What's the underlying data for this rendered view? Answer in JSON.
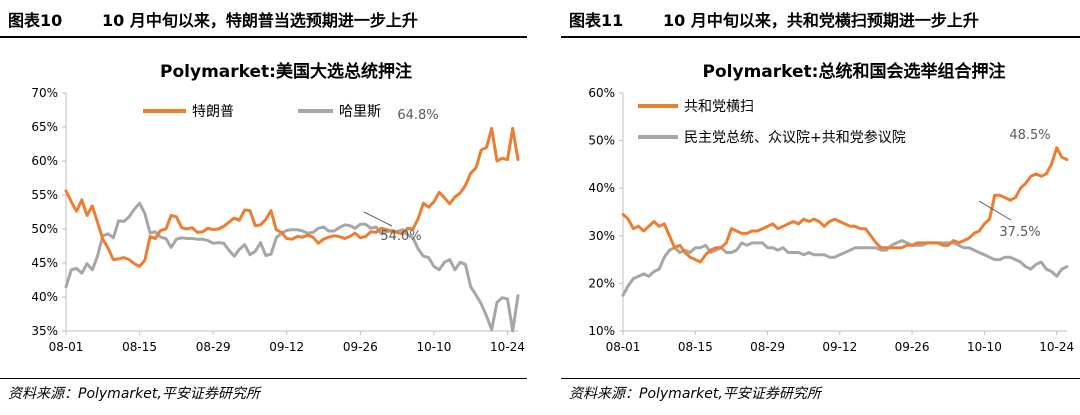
{
  "figures": [
    {
      "label": "图表10",
      "title": "10 月中旬以来，特朗普当选预期进一步上升",
      "source": "资料来源：Polymarket,平安证券研究所"
    },
    {
      "label": "图表11",
      "title": "10 月中旬以来，共和党横扫预期进一步上升",
      "source": "资料来源：Polymarket,平安证券研究所"
    }
  ],
  "chart_data": [
    {
      "type": "line",
      "title": "Polymarket:美国大选总统押注",
      "x_dates": [
        "08-01",
        "08-02",
        "08-03",
        "08-04",
        "08-05",
        "08-06",
        "08-07",
        "08-08",
        "08-09",
        "08-10",
        "08-11",
        "08-12",
        "08-13",
        "08-14",
        "08-15",
        "08-16",
        "08-17",
        "08-18",
        "08-19",
        "08-20",
        "08-21",
        "08-22",
        "08-23",
        "08-24",
        "08-25",
        "08-26",
        "08-27",
        "08-28",
        "08-29",
        "08-30",
        "08-31",
        "09-01",
        "09-02",
        "09-03",
        "09-04",
        "09-05",
        "09-06",
        "09-07",
        "09-08",
        "09-09",
        "09-10",
        "09-11",
        "09-12",
        "09-13",
        "09-14",
        "09-15",
        "09-16",
        "09-17",
        "09-18",
        "09-19",
        "09-20",
        "09-21",
        "09-22",
        "09-23",
        "09-24",
        "09-25",
        "09-26",
        "09-27",
        "09-28",
        "09-29",
        "09-30",
        "10-01",
        "10-02",
        "10-03",
        "10-04",
        "10-05",
        "10-06",
        "10-07",
        "10-08",
        "10-09",
        "10-10",
        "10-11",
        "10-12",
        "10-13",
        "10-14",
        "10-15",
        "10-16",
        "10-17",
        "10-18",
        "10-19",
        "10-20",
        "10-21",
        "10-22",
        "10-23",
        "10-24",
        "10-25",
        "10-26"
      ],
      "x_ticks": [
        "08-01",
        "08-15",
        "08-29",
        "09-12",
        "09-26",
        "10-10",
        "10-24"
      ],
      "ylim": [
        35,
        70
      ],
      "y_ticks": [
        "35%",
        "40%",
        "45%",
        "50%",
        "55%",
        "60%",
        "65%",
        "70%"
      ],
      "legend_position": "top",
      "series": [
        {
          "name": "特朗普",
          "color": "#ED7D31",
          "values": [
            55.6,
            54.0,
            52.6,
            54.3,
            52.0,
            53.4,
            51.0,
            48.5,
            47.2,
            45.5,
            45.6,
            45.8,
            45.5,
            44.9,
            44.5,
            45.4,
            48.9,
            48.6,
            49.8,
            50.0,
            52.0,
            51.8,
            50.2,
            50.0,
            50.2,
            49.5,
            49.6,
            50.1,
            49.9,
            50.0,
            50.4,
            51.0,
            51.6,
            51.3,
            52.8,
            52.7,
            50.5,
            50.6,
            51.4,
            52.7,
            49.9,
            49.5,
            48.6,
            48.5,
            48.9,
            48.8,
            49.1,
            48.8,
            47.9,
            48.5,
            48.8,
            49.0,
            48.9,
            48.6,
            48.9,
            49.4,
            48.7,
            48.9,
            49.6,
            49.5,
            50.1,
            49.9,
            49.6,
            49.5,
            49.3,
            50.1,
            50.0,
            51.5,
            53.8,
            53.2,
            54.0,
            55.4,
            54.6,
            53.7,
            54.7,
            55.3,
            56.4,
            58.2,
            59.0,
            61.6,
            62.0,
            64.8,
            60.0,
            60.4,
            60.2,
            64.8,
            60.2
          ]
        },
        {
          "name": "哈里斯",
          "color": "#A6A6A6",
          "values": [
            41.5,
            44.0,
            44.2,
            43.5,
            44.9,
            44.0,
            46.0,
            49.0,
            49.3,
            48.7,
            51.2,
            51.1,
            51.8,
            52.9,
            53.8,
            52.3,
            49.4,
            49.6,
            48.8,
            48.6,
            47.3,
            48.5,
            48.7,
            48.6,
            48.6,
            48.5,
            48.5,
            48.3,
            47.9,
            48.0,
            47.9,
            46.9,
            46.0,
            47.0,
            47.7,
            46.2,
            46.7,
            48.0,
            46.1,
            46.3,
            48.7,
            49.4,
            49.8,
            49.9,
            49.9,
            49.7,
            49.4,
            49.5,
            50.1,
            50.3,
            49.7,
            49.7,
            50.2,
            50.6,
            50.5,
            50.1,
            50.7,
            50.7,
            50.1,
            50.3,
            49.3,
            49.6,
            49.8,
            49.6,
            49.9,
            49.1,
            48.7,
            47.1,
            46.0,
            45.8,
            44.5,
            44.0,
            45.1,
            45.5,
            44.0,
            45.1,
            44.8,
            41.5,
            40.3,
            39.0,
            37.2,
            35.2,
            39.2,
            39.9,
            39.7,
            35.0,
            40.2
          ]
        }
      ],
      "annotations": [
        {
          "text": "64.8%",
          "series": 0,
          "index": 81
        },
        {
          "text": "54.0%",
          "series": 0,
          "index": 70
        }
      ]
    },
    {
      "type": "line",
      "title": "Polymarket:总统和国会选举组合押注",
      "x_dates": [
        "08-01",
        "08-02",
        "08-03",
        "08-04",
        "08-05",
        "08-06",
        "08-07",
        "08-08",
        "08-09",
        "08-10",
        "08-11",
        "08-12",
        "08-13",
        "08-14",
        "08-15",
        "08-16",
        "08-17",
        "08-18",
        "08-19",
        "08-20",
        "08-21",
        "08-22",
        "08-23",
        "08-24",
        "08-25",
        "08-26",
        "08-27",
        "08-28",
        "08-29",
        "08-30",
        "08-31",
        "09-01",
        "09-02",
        "09-03",
        "09-04",
        "09-05",
        "09-06",
        "09-07",
        "09-08",
        "09-09",
        "09-10",
        "09-11",
        "09-12",
        "09-13",
        "09-14",
        "09-15",
        "09-16",
        "09-17",
        "09-18",
        "09-19",
        "09-20",
        "09-21",
        "09-22",
        "09-23",
        "09-24",
        "09-25",
        "09-26",
        "09-27",
        "09-28",
        "09-29",
        "09-30",
        "10-01",
        "10-02",
        "10-03",
        "10-04",
        "10-05",
        "10-06",
        "10-07",
        "10-08",
        "10-09",
        "10-10",
        "10-11",
        "10-12",
        "10-13",
        "10-14",
        "10-15",
        "10-16",
        "10-17",
        "10-18",
        "10-19",
        "10-20",
        "10-21",
        "10-22",
        "10-23",
        "10-24",
        "10-25",
        "10-26"
      ],
      "x_ticks": [
        "08-01",
        "08-15",
        "08-29",
        "09-12",
        "09-26",
        "10-10",
        "10-24"
      ],
      "ylim": [
        10,
        60
      ],
      "y_ticks": [
        "10%",
        "20%",
        "30%",
        "40%",
        "50%",
        "60%"
      ],
      "legend_position": "top-left",
      "series": [
        {
          "name": "共和党横扫",
          "color": "#ED7D31",
          "values": [
            34.5,
            33.5,
            31.5,
            32.0,
            31.0,
            32.0,
            33.0,
            32.0,
            32.5,
            30.0,
            27.5,
            28.0,
            26.5,
            25.5,
            25.0,
            24.5,
            26.0,
            27.0,
            27.5,
            27.5,
            28.5,
            31.5,
            31.0,
            30.5,
            30.5,
            31.0,
            31.0,
            31.5,
            32.0,
            32.5,
            31.5,
            32.0,
            32.5,
            33.0,
            32.5,
            33.5,
            33.0,
            33.5,
            33.0,
            32.0,
            33.0,
            33.5,
            33.0,
            32.5,
            32.0,
            32.0,
            31.5,
            31.5,
            30.0,
            28.5,
            27.5,
            27.5,
            27.5,
            27.5,
            27.5,
            28.0,
            28.0,
            28.5,
            28.5,
            28.5,
            28.5,
            28.5,
            28.0,
            28.0,
            29.0,
            28.5,
            29.0,
            29.5,
            30.5,
            31.0,
            32.5,
            33.5,
            38.5,
            38.5,
            38.0,
            37.5,
            38.0,
            40.0,
            41.0,
            42.5,
            43.0,
            42.5,
            43.0,
            45.0,
            48.5,
            46.5,
            46.0
          ]
        },
        {
          "name": "民主党总统、众议院+共和党参议院",
          "color": "#A6A6A6",
          "values": [
            17.5,
            19.5,
            21.0,
            21.5,
            22.0,
            21.5,
            22.5,
            23.0,
            25.5,
            27.0,
            27.5,
            26.5,
            27.0,
            26.5,
            27.5,
            27.5,
            28.0,
            26.5,
            27.0,
            27.5,
            26.5,
            26.5,
            27.0,
            28.5,
            28.0,
            28.5,
            28.5,
            28.5,
            27.5,
            27.5,
            27.0,
            27.5,
            26.5,
            26.5,
            26.5,
            26.0,
            26.5,
            26.0,
            26.0,
            26.0,
            25.5,
            25.5,
            26.0,
            26.5,
            27.0,
            27.5,
            27.5,
            27.5,
            27.5,
            27.5,
            27.0,
            27.0,
            28.0,
            28.5,
            29.0,
            28.5,
            28.0,
            28.0,
            28.0,
            28.5,
            28.5,
            28.5,
            28.5,
            28.5,
            28.5,
            28.0,
            27.5,
            27.5,
            27.0,
            26.5,
            26.0,
            25.5,
            25.0,
            25.0,
            25.5,
            25.5,
            25.0,
            24.5,
            23.5,
            23.0,
            24.0,
            24.5,
            23.0,
            22.5,
            21.5,
            23.0,
            23.5
          ]
        }
      ],
      "annotations": [
        {
          "text": "48.5%",
          "series": 0,
          "index": 84
        },
        {
          "text": "37.5%",
          "series": 0,
          "index": 75
        }
      ]
    }
  ]
}
